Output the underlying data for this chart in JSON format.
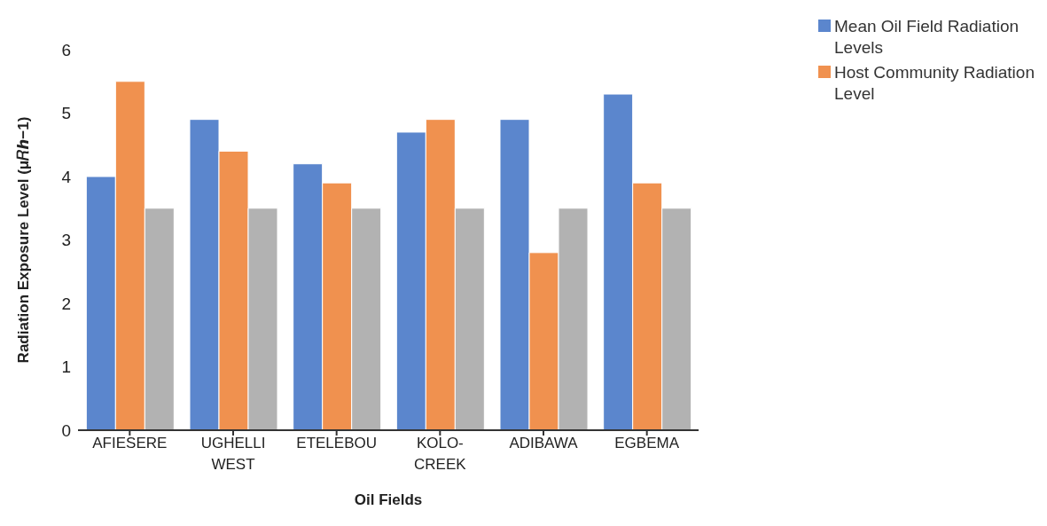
{
  "chart_data": {
    "type": "bar",
    "xlabel": "Oil Fields",
    "ylabel": "Radiation Exposure Level (μ𝑅ℎ−1)",
    "categories": [
      "AFIESERE",
      "UGHELLI WEST",
      "ETELEBOU",
      "KOLO-CREEK",
      "ADIBAWA",
      "EGBEMA"
    ],
    "series": [
      {
        "name": "Mean Oil Field Radiation Levels",
        "color": "#5b86cd",
        "values": [
          4.0,
          4.9,
          4.2,
          4.7,
          4.9,
          5.3
        ]
      },
      {
        "name": "Host Community Radiation Level",
        "color": "#f0914f",
        "values": [
          5.5,
          4.4,
          3.9,
          4.9,
          2.8,
          3.9
        ]
      },
      {
        "color": "#b2b2b2",
        "values": [
          3.5,
          3.5,
          3.5,
          3.5,
          3.5,
          3.5
        ]
      }
    ],
    "ylim": [
      0,
      6
    ],
    "yticks": [
      0,
      1,
      2,
      3,
      4,
      5,
      6
    ],
    "grid": false,
    "legend": "top right"
  }
}
